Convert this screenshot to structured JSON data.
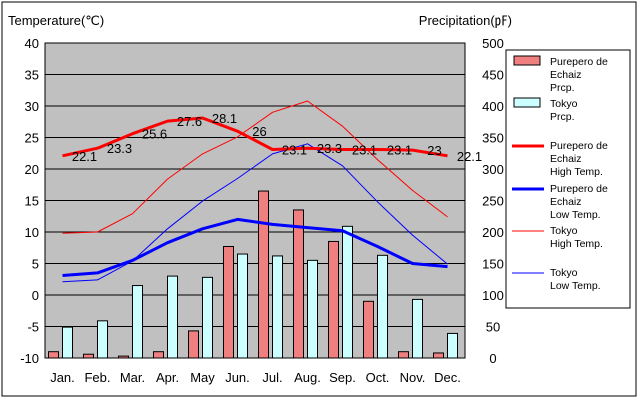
{
  "chart_data": {
    "type": "bar",
    "categories": [
      "Jan.",
      "Feb.",
      "Mar.",
      "Apr.",
      "May",
      "Jun.",
      "Jul.",
      "Aug.",
      "Sep.",
      "Oct.",
      "Nov.",
      "Dec."
    ],
    "left_axis": {
      "label": "Temperature(℃)",
      "ylim": [
        -10,
        40
      ],
      "ticks": [
        -10,
        -5,
        0,
        5,
        10,
        15,
        20,
        25,
        30,
        35,
        40
      ]
    },
    "right_axis": {
      "label": "Precipitation(㎊)",
      "ylim": [
        0,
        500
      ],
      "ticks": [
        0,
        50,
        100,
        150,
        200,
        250,
        300,
        350,
        400,
        450,
        500
      ]
    },
    "grid": true,
    "legend_position": "right",
    "bar_series": [
      {
        "name": [
          "Purepero de",
          "Echaiz",
          "Prcp."
        ],
        "color": "#f08080",
        "values": [
          10,
          6,
          3,
          10,
          43,
          177,
          265,
          235,
          185,
          90,
          10,
          8
        ]
      },
      {
        "name": [
          "Tokyo",
          "Prcp."
        ],
        "color": "#ccffff",
        "values": [
          49,
          59,
          115,
          130,
          128,
          165,
          162,
          155,
          209,
          163,
          93,
          39
        ]
      }
    ],
    "line_series": [
      {
        "name": [
          "Purepero de",
          "Echaiz",
          "High Temp."
        ],
        "color": "#ff0000",
        "width": 3,
        "values": [
          22.1,
          23.3,
          25.6,
          27.6,
          28.1,
          26,
          23.1,
          23.3,
          23.1,
          23.1,
          23,
          22.1
        ]
      },
      {
        "name": [
          "Purepero de",
          "Echaiz",
          "Low Temp."
        ],
        "color": "#0000ff",
        "width": 3,
        "values": [
          3.1,
          3.5,
          5.5,
          8.3,
          10.5,
          12,
          11.2,
          10.7,
          10.2,
          7.7,
          5,
          4.5
        ]
      },
      {
        "name": [
          "Tokyo",
          "High Temp."
        ],
        "color": "#ff0000",
        "width": 1,
        "values": [
          9.8,
          10,
          12.9,
          18.4,
          22.4,
          25.1,
          29,
          30.8,
          26.8,
          21.5,
          16.6,
          12.4
        ]
      },
      {
        "name": [
          "Tokyo",
          "Low Temp."
        ],
        "color": "#0000ff",
        "width": 1,
        "values": [
          2.1,
          2.4,
          5.4,
          10.5,
          14.9,
          18.5,
          22.4,
          24,
          20.5,
          14.8,
          9.5,
          4.9
        ]
      }
    ],
    "data_labels": [
      "22.1",
      "23.3",
      "25.6",
      "27.6",
      "28.1",
      "26",
      "23.1",
      "23.3",
      "23.1",
      "23.1",
      "23",
      "22.1"
    ]
  }
}
